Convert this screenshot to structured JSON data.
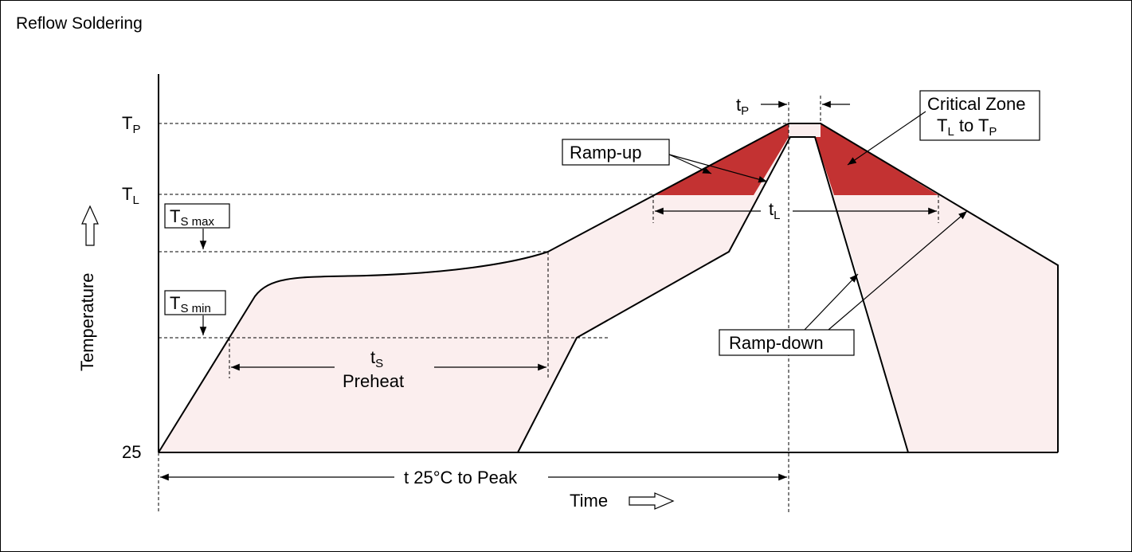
{
  "title": "Reflow Soldering",
  "y_axis": {
    "label": "Temperature",
    "ticks": {
      "tp": {
        "main": "T",
        "sub": "P"
      },
      "tl": {
        "main": "T",
        "sub": "L"
      },
      "base": "25"
    }
  },
  "x_axis": {
    "label": "Time"
  },
  "labels": {
    "ts_max": {
      "main": "T",
      "sub": "S max"
    },
    "ts_min": {
      "main": "T",
      "sub": "S min"
    },
    "ts": {
      "main": "t",
      "sub": "S"
    },
    "preheat": "Preheat",
    "tl_span": {
      "main": "t",
      "sub": "L"
    },
    "tp_span": {
      "main": "t",
      "sub": "P"
    },
    "t25_to_peak": "t 25°C to Peak",
    "ramp_up": "Ramp-up",
    "ramp_down": "Ramp-down",
    "critical_zone": {
      "line1": "Critical Zone",
      "line2_a": "T",
      "line2_a_sub": "L",
      "line2_mid": " to T",
      "line2_b_sub": "P"
    }
  },
  "colors": {
    "critical_fill": "#c33232",
    "preheat_fill": "#fbeeee",
    "line": "#000000"
  }
}
